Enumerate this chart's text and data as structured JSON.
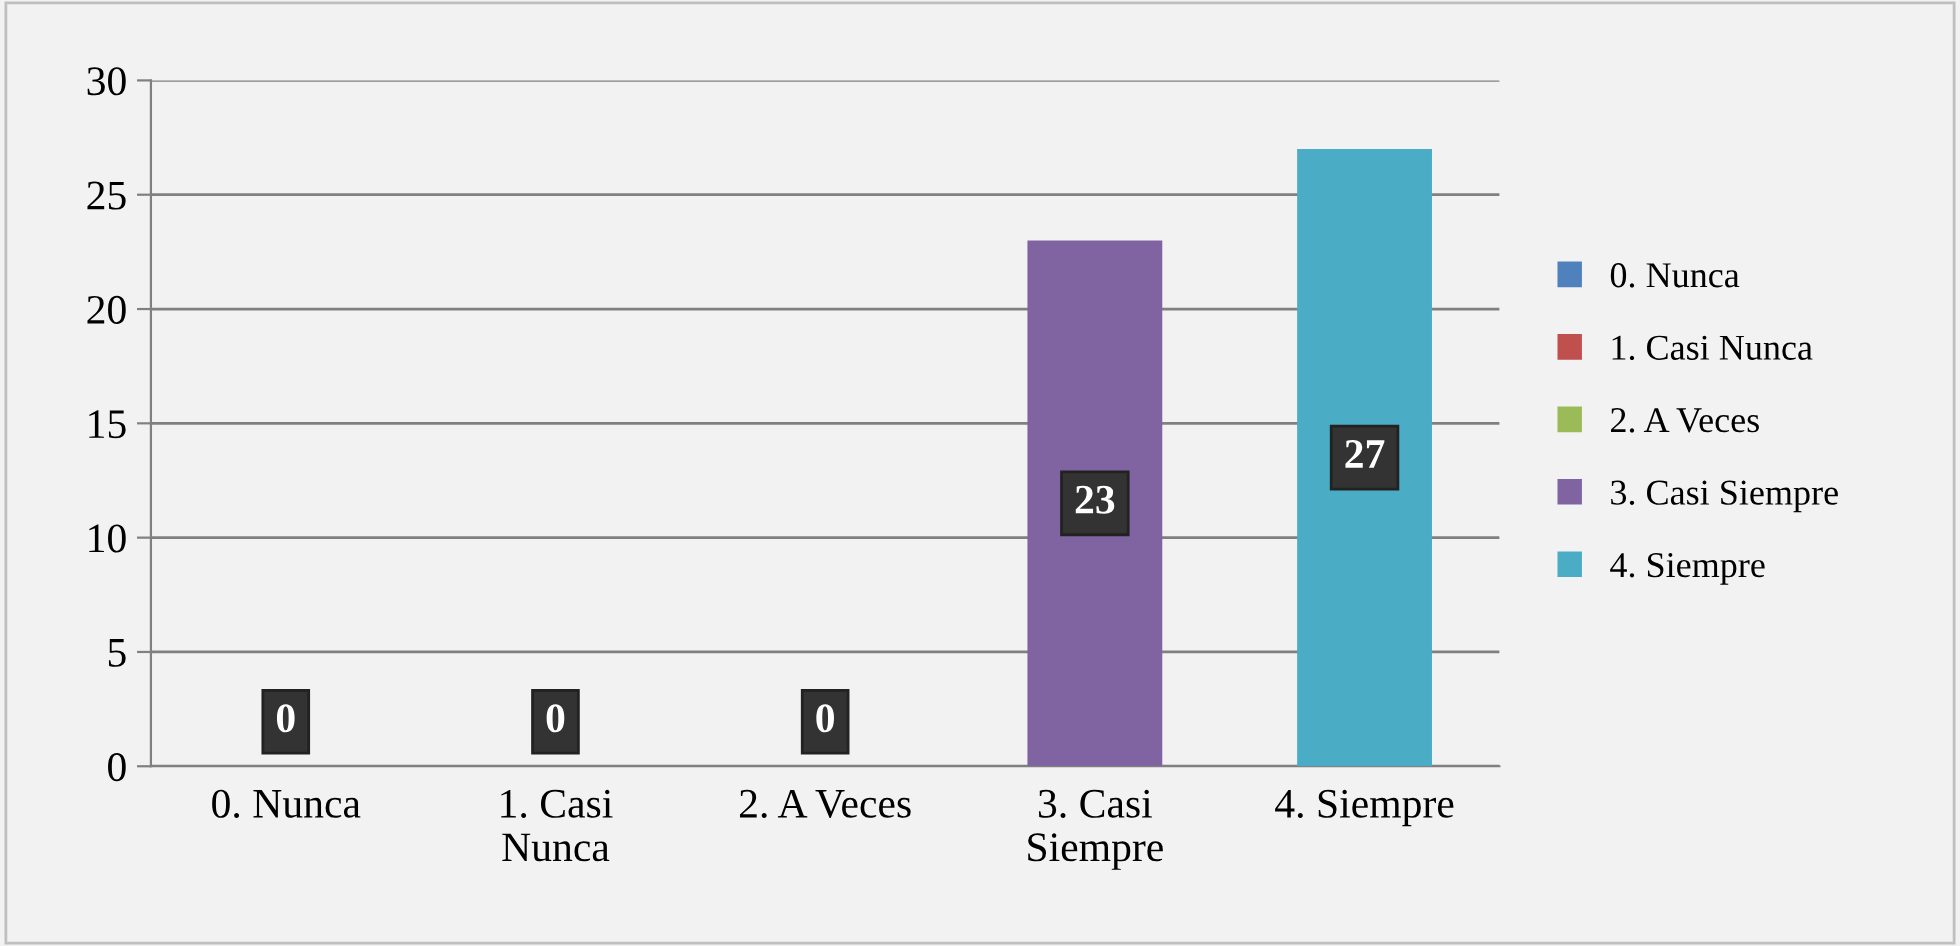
{
  "chart_data": {
    "type": "bar",
    "categories": [
      "0. Nunca",
      "1. Casi Nunca",
      "2. A Veces",
      "3. Casi Siempre",
      "4. Siempre"
    ],
    "series": [
      {
        "name": "0. Nunca",
        "color": "#4f81bd",
        "values": [
          0,
          null,
          null,
          null,
          null
        ]
      },
      {
        "name": "1. Casi Nunca",
        "color": "#c0504d",
        "values": [
          null,
          0,
          null,
          null,
          null
        ]
      },
      {
        "name": "2. A Veces",
        "color": "#9bbb59",
        "values": [
          null,
          null,
          0,
          null,
          null
        ]
      },
      {
        "name": "3. Casi Siempre",
        "color": "#8064a2",
        "values": [
          null,
          null,
          null,
          23,
          null
        ]
      },
      {
        "name": "4. Siempre",
        "color": "#4bacc6",
        "values": [
          null,
          null,
          null,
          null,
          27
        ]
      }
    ],
    "ylim": [
      0,
      30
    ],
    "yticks": [
      0,
      5,
      10,
      15,
      20,
      25,
      30
    ],
    "grid": "y",
    "legend": "right",
    "data_labels": true
  }
}
